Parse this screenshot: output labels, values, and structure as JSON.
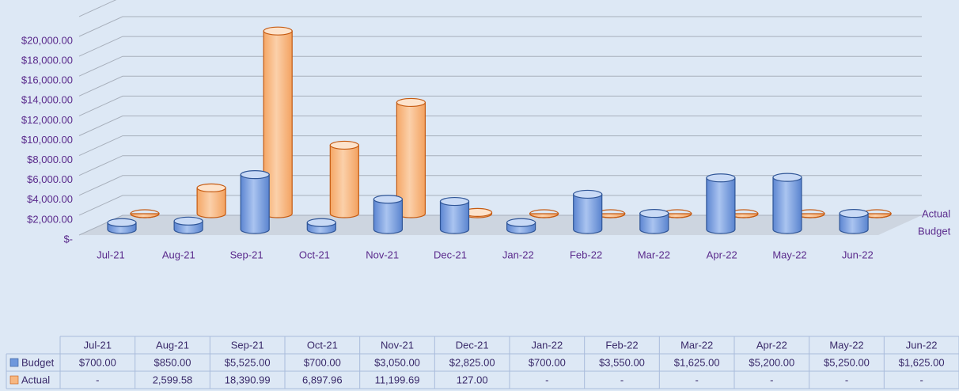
{
  "chart_data": {
    "type": "bar",
    "categories": [
      "Jul-21",
      "Aug-21",
      "Sep-21",
      "Oct-21",
      "Nov-21",
      "Dec-21",
      "Jan-22",
      "Feb-22",
      "Mar-22",
      "Apr-22",
      "May-22",
      "Jun-22"
    ],
    "series": [
      {
        "name": "Budget",
        "color": "#6f98dc",
        "values": [
          700,
          850,
          5525,
          700,
          3050,
          2825,
          700,
          3550,
          1625,
          5200,
          5250,
          1625
        ],
        "value_labels": [
          "$700.00",
          "$850.00",
          "$5,525.00",
          "$700.00",
          "$3,050.00",
          "$2,825.00",
          "$700.00",
          "$3,550.00",
          "$1,625.00",
          "$5,200.00",
          "$5,250.00",
          "$1,625.00"
        ]
      },
      {
        "name": "Actual",
        "color": "#f7b781",
        "values": [
          0,
          2599.58,
          18390.99,
          6897.96,
          11199.69,
          127,
          0,
          0,
          0,
          0,
          0,
          0
        ],
        "value_labels": [
          "-",
          "2,599.58",
          "18,390.99",
          "6,897.96",
          "11,199.69",
          "127.00",
          "-",
          "-",
          "-",
          "-",
          "-",
          "-"
        ]
      }
    ],
    "ylim": [
      0,
      22000
    ],
    "yticks": [
      {
        "value": 0,
        "label": "$-"
      },
      {
        "value": 2000,
        "label": "$2,000.00"
      },
      {
        "value": 4000,
        "label": "$4,000.00"
      },
      {
        "value": 6000,
        "label": "$6,000.00"
      },
      {
        "value": 8000,
        "label": "$8,000.00"
      },
      {
        "value": 10000,
        "label": "$10,000.00"
      },
      {
        "value": 12000,
        "label": "$12,000.00"
      },
      {
        "value": 14000,
        "label": "$14,000.00"
      },
      {
        "value": 16000,
        "label": "$16,000.00"
      },
      {
        "value": 18000,
        "label": "$18,000.00"
      },
      {
        "value": 20000,
        "label": "$20,000.00"
      }
    ],
    "grid": true
  }
}
